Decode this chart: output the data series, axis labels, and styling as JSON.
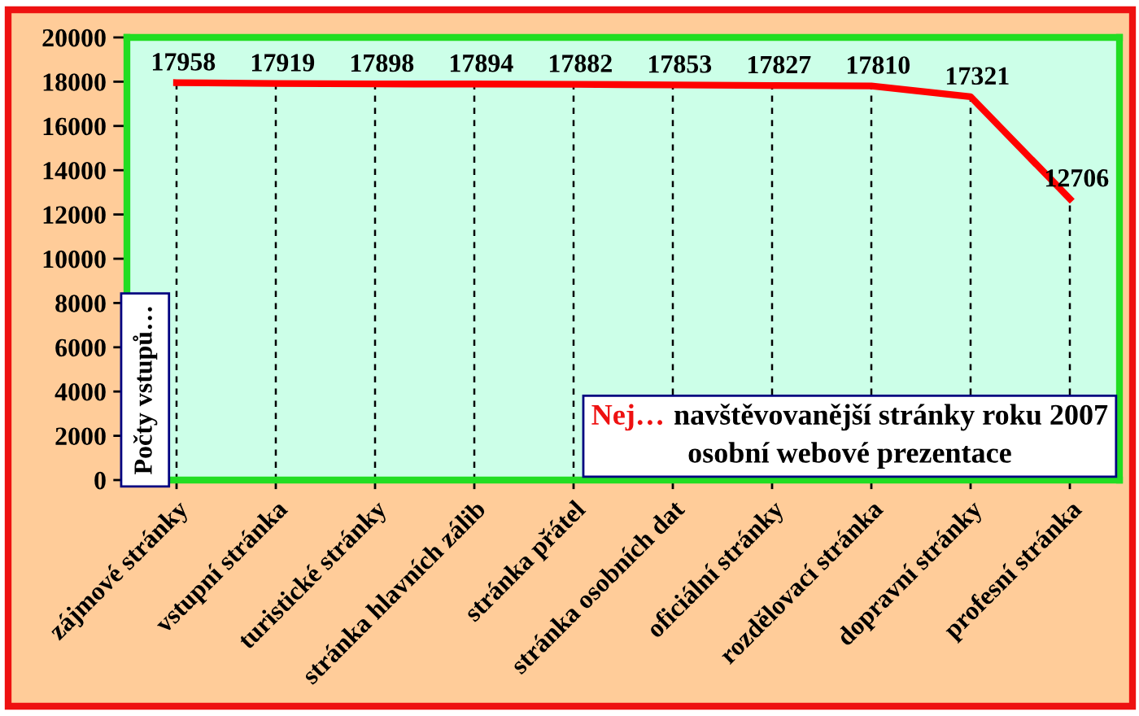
{
  "chart_data": {
    "type": "line",
    "title": "Nej… navštěvovanější stránky roku 2007",
    "subtitle": "osobní webové prezentace",
    "ylabel": "Počty vstupů…",
    "categories": [
      "zájmové stránky",
      "vstupní stránka",
      "turistické stránky",
      "stránka hlavních zálib",
      "stránka přátel",
      "stránka osobních dat",
      "oficiální stránky",
      "rozdělovací stránka",
      "dopravní stránky",
      "profesní stránka"
    ],
    "values": [
      17958,
      17919,
      17898,
      17894,
      17882,
      17853,
      17827,
      17810,
      17321,
      12706
    ],
    "color": "#ff0000",
    "ylim": [
      0,
      20000
    ],
    "yticks": [
      0,
      2000,
      4000,
      6000,
      8000,
      10000,
      12000,
      14000,
      16000,
      18000,
      20000
    ],
    "grid": "x",
    "data_labels": true
  }
}
